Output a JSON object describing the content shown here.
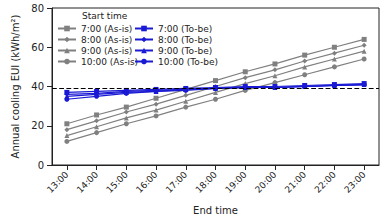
{
  "chart_data": {
    "type": "line",
    "x_label": "End time",
    "y_label": "Annual cooling EUI (kWh/m²)",
    "legend_title": "Start time",
    "legend": "upper left",
    "grid": false,
    "categories": [
      "13:00",
      "14:00",
      "15:00",
      "16:00",
      "17:00",
      "18:00",
      "19:00",
      "20:00",
      "21:00",
      "22:00",
      "23:00"
    ],
    "ylim": [
      0,
      80
    ],
    "yticks": [
      0,
      20,
      40,
      60,
      80
    ],
    "reference_line": {
      "value": 39,
      "color": "#000000",
      "line_style": "dashed"
    },
    "series": [
      {
        "name": "7:00 (As-is)",
        "color": "#808080",
        "marker": "square",
        "values": [
          21,
          25.5,
          29.5,
          34,
          38.5,
          43,
          47.5,
          51.5,
          56,
          60,
          64
        ]
      },
      {
        "name": "8:00 (As-is)",
        "color": "#808080",
        "marker": "diamond",
        "values": [
          18,
          22.5,
          27,
          31,
          35.5,
          40,
          44.5,
          48.5,
          53,
          57,
          61
        ]
      },
      {
        "name": "9:00 (As-is)",
        "color": "#808080",
        "marker": "triangle",
        "values": [
          15,
          19.5,
          24,
          28,
          32.5,
          37,
          41.5,
          45.5,
          50,
          54,
          58
        ]
      },
      {
        "name": "10:00 (As-is)",
        "color": "#808080",
        "marker": "circle",
        "values": [
          12,
          16.5,
          21,
          25,
          29.5,
          33.5,
          38,
          42,
          46,
          50,
          54
        ]
      },
      {
        "name": "7:00 (To-be)",
        "color": "#1a1ad4",
        "marker": "square",
        "values": [
          37,
          37.5,
          38,
          38.5,
          39,
          39.5,
          40,
          40,
          40.5,
          41,
          41.5
        ]
      },
      {
        "name": "8:00 (To-be)",
        "color": "#1a1ad4",
        "marker": "diamond",
        "values": [
          36,
          36.5,
          37.5,
          38,
          38.5,
          39,
          39.5,
          39.5,
          40,
          40.5,
          41
        ]
      },
      {
        "name": "9:00 (To-be)",
        "color": "#1a1ad4",
        "marker": "triangle",
        "values": [
          35,
          36,
          37,
          37.5,
          38.5,
          39,
          39.5,
          39.5,
          40,
          40.5,
          41
        ]
      },
      {
        "name": "10:00 (To-be)",
        "color": "#1a1ad4",
        "marker": "circle",
        "values": [
          33.5,
          35,
          36.5,
          37.5,
          38,
          39,
          39.5,
          39.5,
          40,
          40.5,
          41
        ]
      }
    ]
  }
}
